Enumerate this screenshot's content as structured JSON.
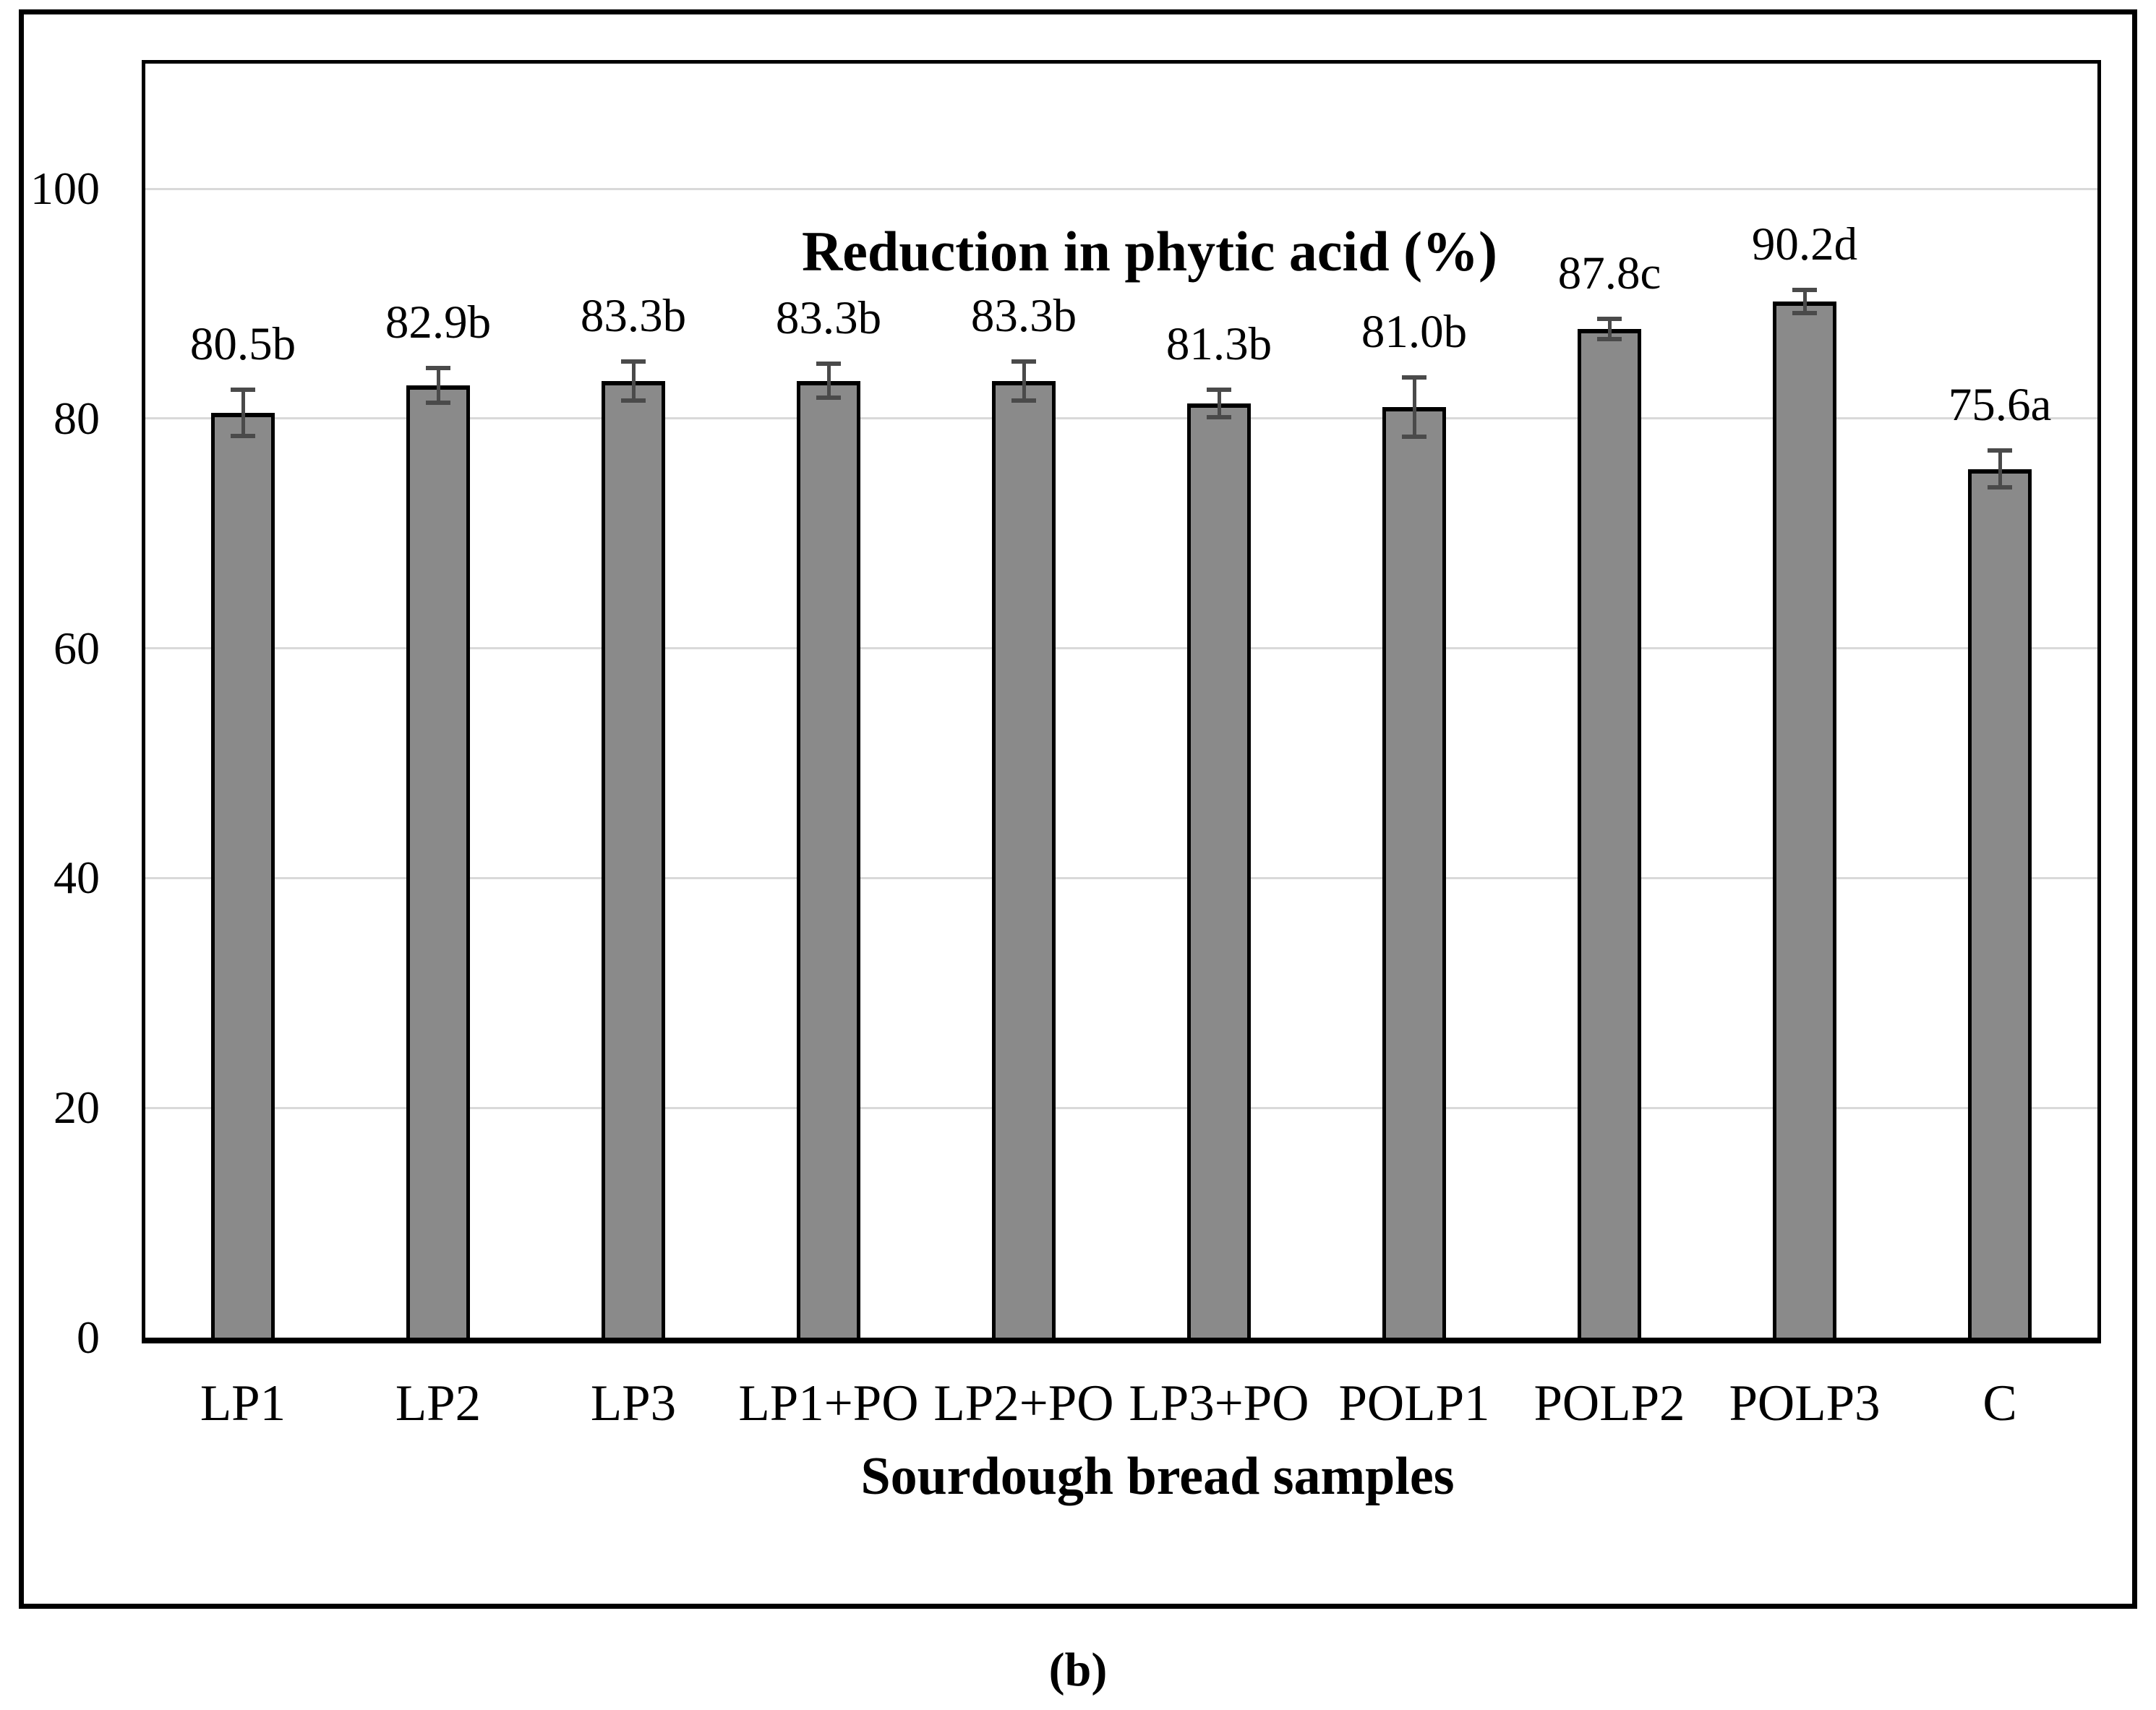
{
  "caption": "(b)",
  "chart_data": {
    "type": "bar",
    "title": "Reduction in phytic acid (%)",
    "xlabel": "Sourdough bread samples",
    "ylabel": "",
    "categories": [
      "LP1",
      "LP2",
      "LP3",
      "LP1+PO",
      "LP2+PO",
      "LP3+PO",
      "POLP1",
      "POLP2",
      "POLP3",
      "C"
    ],
    "values": [
      80.5,
      82.9,
      83.3,
      83.3,
      83.3,
      81.3,
      81.0,
      87.8,
      90.2,
      75.6
    ],
    "value_labels": [
      "80.5b",
      "82.9b",
      "83.3b",
      "83.3b",
      "83.3b",
      "81.3b",
      "81.0b",
      "87.8c",
      "90.2d",
      "75.6a"
    ],
    "errors": [
      2.0,
      1.5,
      1.7,
      1.5,
      1.7,
      1.2,
      2.6,
      0.9,
      1.0,
      1.6
    ],
    "y_ticks": [
      0,
      20,
      40,
      60,
      80,
      100
    ],
    "ylim": [
      0,
      110.9
    ],
    "grid": true,
    "legend_position": "none",
    "bar_color": "#8a8a8a",
    "bar_border_color": "#000000",
    "error_bar_color": "#4a4a4a",
    "gridline_color": "#d9d9d9"
  }
}
